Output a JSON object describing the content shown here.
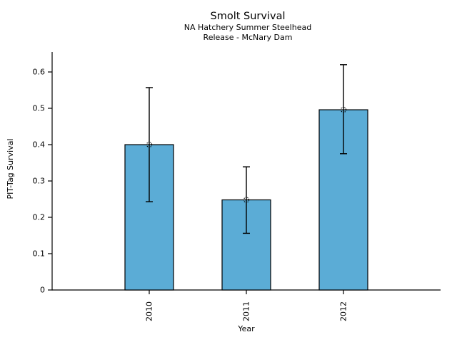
{
  "chart_data": {
    "type": "bar",
    "title": "Smolt Survival",
    "subtitle": [
      "NA Hatchery Summer Steelhead",
      "Release - McNary Dam"
    ],
    "xlabel": "Year",
    "ylabel": "PIT-Tag Survival",
    "categories": [
      "2010",
      "2011",
      "2012"
    ],
    "values": [
      0.4,
      0.248,
      0.496
    ],
    "error_bars": {
      "lower": [
        0.243,
        0.156,
        0.375
      ],
      "upper": [
        0.557,
        0.339,
        0.62
      ]
    },
    "marker": "dotted-open-circle",
    "yticks": [
      0,
      0.1,
      0.2,
      0.3,
      0.4,
      0.5,
      0.6
    ],
    "ytick_labels": [
      "0",
      "0.1",
      "0.2",
      "0.3",
      "0.4",
      "0.5",
      "0.6"
    ],
    "ylim": [
      0,
      0.655
    ],
    "grid": false,
    "legend": null,
    "colors": {
      "bar_fill": "#5BACD6",
      "bar_edge": "#000000",
      "errorbar": "#000000",
      "text": "#000000",
      "background": "#FFFFFF"
    }
  }
}
